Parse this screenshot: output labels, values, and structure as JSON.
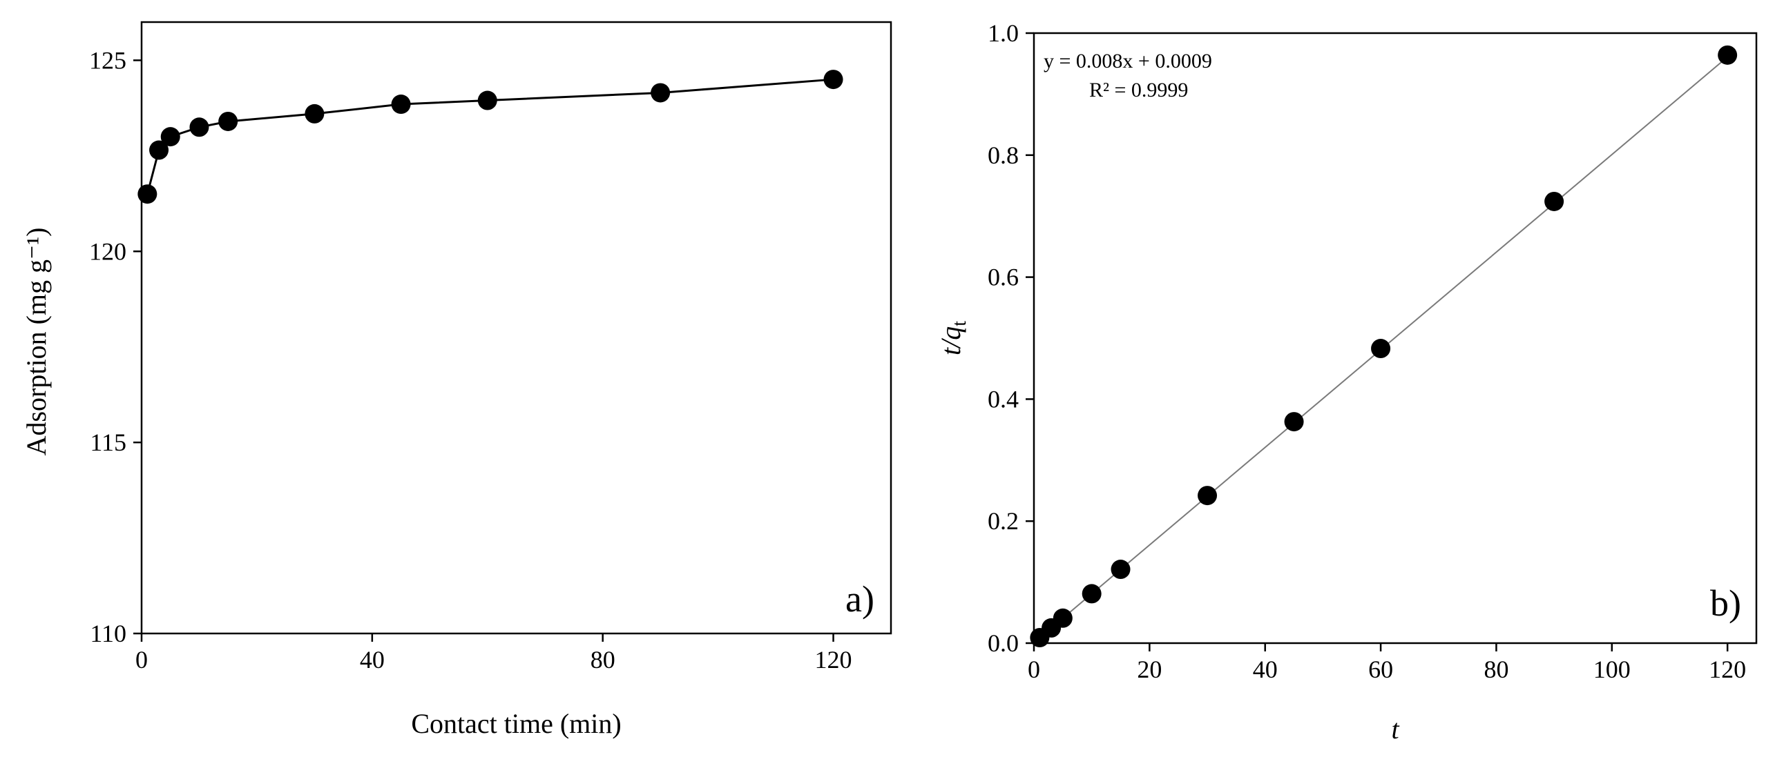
{
  "chart_data": [
    {
      "type": "line",
      "panel_label": "a)",
      "xlabel": "Contact time (min)",
      "ylabel": "Adsorption (mg g⁻¹)",
      "xlim": [
        0,
        130
      ],
      "ylim": [
        110,
        126
      ],
      "xticks": [
        0,
        40,
        80,
        120
      ],
      "yticks": [
        110,
        115,
        120,
        125
      ],
      "grid": false,
      "series": [
        {
          "name": "Adsorption",
          "marker": "filled-circle",
          "line": true,
          "x": [
            1,
            3,
            5,
            10,
            15,
            30,
            45,
            60,
            90,
            120
          ],
          "y": [
            121.5,
            122.65,
            123.0,
            123.25,
            123.4,
            123.6,
            123.85,
            123.95,
            124.15,
            124.5
          ]
        }
      ]
    },
    {
      "type": "scatter",
      "panel_label": "b)",
      "xlabel": "t",
      "ylabel_main": "t/q",
      "ylabel_sub": "t",
      "xlim": [
        0,
        125
      ],
      "ylim": [
        0,
        1.0
      ],
      "xticks": [
        0,
        20,
        40,
        60,
        80,
        100,
        120
      ],
      "yticks": [
        0.0,
        0.2,
        0.4,
        0.6,
        0.8,
        1.0
      ],
      "grid": false,
      "series": [
        {
          "name": "t/qt",
          "marker": "filled-circle",
          "line": false,
          "x": [
            1,
            3,
            5,
            10,
            15,
            30,
            45,
            60,
            90,
            120
          ],
          "y": [
            0.009,
            0.025,
            0.041,
            0.081,
            0.121,
            0.242,
            0.363,
            0.483,
            0.724,
            0.964
          ]
        }
      ],
      "fit": {
        "slope": 0.008,
        "intercept": 0.0009,
        "x_range": [
          0,
          120.5
        ],
        "equation": "y = 0.008x + 0.0009",
        "r2": "R² = 0.9999"
      }
    }
  ]
}
